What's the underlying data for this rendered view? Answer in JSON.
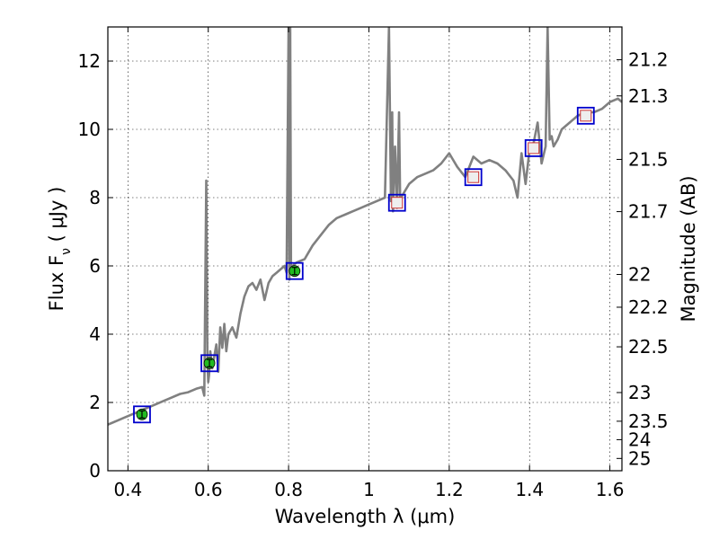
{
  "chart_data": {
    "type": "line",
    "xlabel": "Wavelength  λ (μm)",
    "ylabel": "Flux  F",
    "ylabel_sub": "ν",
    "ylabel_unit": "  ( μJy )",
    "ylabel_right": "Magnitude (AB)",
    "xlim": [
      0.35,
      1.63
    ],
    "ylim": [
      0,
      13
    ],
    "grid": true,
    "x_ticks": [
      0.4,
      0.6,
      0.8,
      1.0,
      1.2,
      1.4,
      1.6
    ],
    "x_tick_labels": [
      "0.4",
      "0.6",
      "0.8",
      "1",
      "1.2",
      "1.4",
      "1.6"
    ],
    "y_ticks": [
      0,
      2,
      4,
      6,
      8,
      10,
      12
    ],
    "y_tick_labels": [
      "0",
      "2",
      "4",
      "6",
      "8",
      "10",
      "12"
    ],
    "right_ticks": [
      {
        "label": "21.2",
        "flux": 12.04
      },
      {
        "label": "21.3",
        "flux": 10.98
      },
      {
        "label": "21.5",
        "flux": 9.12
      },
      {
        "label": "21.7",
        "flux": 7.59
      },
      {
        "label": "22",
        "flux": 5.75
      },
      {
        "label": "22.2",
        "flux": 4.79
      },
      {
        "label": "22.5",
        "flux": 3.63
      },
      {
        "label": "23",
        "flux": 2.29
      },
      {
        "label": "23.5",
        "flux": 1.45
      },
      {
        "label": "24",
        "flux": 0.91
      },
      {
        "label": "25",
        "flux": 0.36
      }
    ],
    "series": [
      {
        "color": "#808080",
        "x": [
          0.35,
          0.37,
          0.39,
          0.41,
          0.43,
          0.45,
          0.47,
          0.49,
          0.51,
          0.53,
          0.55,
          0.57,
          0.585,
          0.59,
          0.595,
          0.598,
          0.6,
          0.602,
          0.605,
          0.61,
          0.62,
          0.625,
          0.63,
          0.635,
          0.64,
          0.645,
          0.65,
          0.66,
          0.67,
          0.68,
          0.69,
          0.7,
          0.71,
          0.72,
          0.73,
          0.74,
          0.75,
          0.76,
          0.77,
          0.78,
          0.79,
          0.795,
          0.8,
          0.802,
          0.804,
          0.806,
          0.81,
          0.82,
          0.83,
          0.84,
          0.85,
          0.86,
          0.88,
          0.9,
          0.92,
          0.94,
          0.96,
          0.98,
          1.0,
          1.02,
          1.04,
          1.05,
          1.055,
          1.058,
          1.06,
          1.065,
          1.07,
          1.075,
          1.078,
          1.08,
          1.085,
          1.09,
          1.1,
          1.12,
          1.14,
          1.16,
          1.18,
          1.2,
          1.22,
          1.24,
          1.26,
          1.28,
          1.3,
          1.32,
          1.34,
          1.36,
          1.37,
          1.38,
          1.39,
          1.4,
          1.41,
          1.42,
          1.43,
          1.44,
          1.445,
          1.45,
          1.455,
          1.46,
          1.47,
          1.48,
          1.5,
          1.52,
          1.54,
          1.56,
          1.58,
          1.6,
          1.62,
          1.63
        ],
        "y": [
          1.35,
          1.45,
          1.55,
          1.65,
          1.75,
          1.85,
          1.95,
          2.05,
          2.15,
          2.25,
          2.3,
          2.4,
          2.45,
          2.2,
          8.5,
          3.2,
          2.6,
          2.8,
          3.5,
          3.0,
          3.7,
          2.9,
          4.2,
          3.6,
          4.3,
          3.5,
          4.0,
          4.2,
          3.9,
          4.6,
          5.1,
          5.4,
          5.5,
          5.3,
          5.6,
          5.0,
          5.5,
          5.7,
          5.8,
          5.9,
          6.0,
          5.8,
          13,
          5.6,
          13,
          5.9,
          6.0,
          6.1,
          6.15,
          6.2,
          6.4,
          6.6,
          6.9,
          7.2,
          7.4,
          7.5,
          7.6,
          7.7,
          7.8,
          7.9,
          8.0,
          13,
          7.9,
          10.5,
          7.6,
          9.5,
          7.7,
          10.5,
          7.8,
          8.0,
          8.1,
          8.2,
          8.4,
          8.6,
          8.7,
          8.8,
          9.0,
          9.3,
          8.9,
          8.6,
          9.2,
          9.0,
          9.1,
          9.0,
          8.8,
          8.5,
          8.0,
          9.3,
          8.4,
          9.4,
          9.6,
          10.2,
          9.0,
          9.5,
          13,
          9.7,
          9.8,
          9.5,
          9.7,
          10.0,
          10.2,
          10.4,
          10.5,
          10.5,
          10.6,
          10.8,
          10.9,
          10.8
        ]
      }
    ],
    "photometry": [
      {
        "x": 0.435,
        "y": 1.65,
        "detected": true
      },
      {
        "x": 0.603,
        "y": 3.15,
        "detected": true
      },
      {
        "x": 0.815,
        "y": 5.85,
        "detected": true
      },
      {
        "x": 1.07,
        "y": 7.85,
        "detected": false
      },
      {
        "x": 1.26,
        "y": 8.6,
        "detected": false
      },
      {
        "x": 1.41,
        "y": 9.45,
        "detected": false
      },
      {
        "x": 1.54,
        "y": 10.4,
        "detected": false
      }
    ],
    "colors": {
      "spectrum": "#808080",
      "square": "#0000cc",
      "detected_point": "#22bb22",
      "model_point": "#cc3333"
    }
  }
}
